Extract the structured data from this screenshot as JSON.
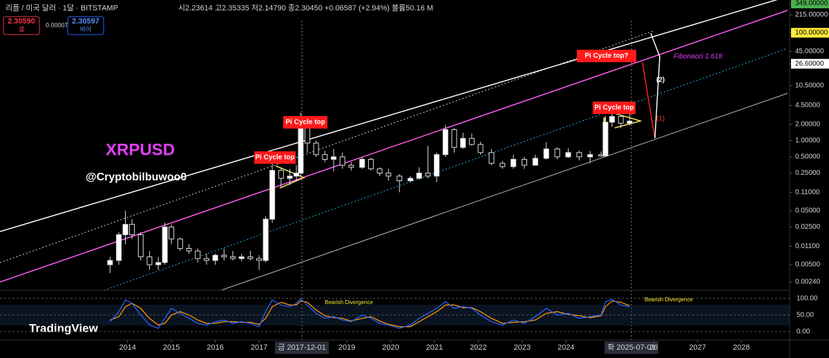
{
  "ui": {
    "symbol": "리플 / 미국 달러 · 1달 · BITSTAMP",
    "ohlc": "시2.23614 고2.35335 저2.14790 종2.30450 +0.06587 (+2.94%) 볼륨50.16 M",
    "sell_price": "2.30590",
    "sell_label": "셀",
    "spread": "0.00007",
    "buy_price": "2.30597",
    "buy_label": "바이",
    "logo": "TradingView",
    "cursor_left": "금 2017-12-01",
    "cursor_right": "화 2025-07-01"
  },
  "chart_data": {
    "type": "candlestick",
    "title": "XRPUSD",
    "subtitle": "@Cryptobilbuwoo0",
    "log_scale": true,
    "xlim": [
      2011.09,
      2029.1
    ],
    "xticks": [
      2014,
      2015,
      2016,
      2017,
      2019,
      2020,
      2021,
      2022,
      2023,
      2024,
      {
        "value": 2026,
        "label": "26"
      },
      2027,
      2028
    ],
    "ylim": [
      0.00168,
      405
    ],
    "yticks": [
      {
        "value": 349,
        "label": "349.00000"
      },
      {
        "value": 215,
        "label": "215.00000"
      },
      {
        "value": 100,
        "label": "100.00000"
      },
      {
        "value": 45,
        "label": "45.00000"
      },
      {
        "value": 26.6,
        "label": "26.60000"
      },
      {
        "value": 10.5,
        "label": "10.50000"
      },
      {
        "value": 4.5,
        "label": "4.50000"
      },
      {
        "value": 2,
        "label": "2.00000"
      },
      {
        "value": 1,
        "label": "1.00000"
      },
      {
        "value": 0.5,
        "label": "0.50000"
      },
      {
        "value": 0.25,
        "label": "0.25000"
      },
      {
        "value": 0.11,
        "label": "0.11000"
      },
      {
        "value": 0.05,
        "label": "0.05000"
      },
      {
        "value": 0.025,
        "label": "0.02500"
      },
      {
        "value": 0.011,
        "label": "0.01100"
      },
      {
        "value": 0.005,
        "label": "0.00500"
      },
      {
        "value": 0.0024,
        "label": "0.00240"
      }
    ],
    "up_color": "#ffffff",
    "down_color": "#000000",
    "x": [
      2013.6,
      2013.8,
      2013.95,
      2014.1,
      2014.3,
      2014.5,
      2014.7,
      2014.85,
      2015.0,
      2015.2,
      2015.4,
      2015.6,
      2015.8,
      2016.0,
      2016.2,
      2016.4,
      2016.6,
      2016.8,
      2017.0,
      2017.15,
      2017.3,
      2017.5,
      2017.7,
      2017.85,
      2017.95,
      2018.1,
      2018.3,
      2018.5,
      2018.7,
      2018.9,
      2019.1,
      2019.35,
      2019.55,
      2019.75,
      2019.95,
      2020.2,
      2020.45,
      2020.65,
      2020.85,
      2021.05,
      2021.25,
      2021.45,
      2021.65,
      2021.85,
      2022.05,
      2022.3,
      2022.55,
      2022.8,
      2023.05,
      2023.3,
      2023.55,
      2023.8,
      2024.05,
      2024.3,
      2024.55,
      2024.8,
      2024.9,
      2025.05,
      2025.25,
      2025.45
    ],
    "open": [
      0.005,
      0.006,
      0.018,
      0.028,
      0.018,
      0.007,
      0.005,
      0.0055,
      0.025,
      0.015,
      0.01,
      0.009,
      0.0065,
      0.006,
      0.0075,
      0.007,
      0.0065,
      0.007,
      0.0065,
      0.006,
      0.035,
      0.28,
      0.2,
      0.22,
      0.25,
      2.3,
      0.9,
      0.55,
      0.45,
      0.5,
      0.35,
      0.32,
      0.45,
      0.3,
      0.25,
      0.22,
      0.18,
      0.2,
      0.25,
      0.22,
      0.55,
      1.6,
      0.75,
      1.1,
      0.85,
      0.6,
      0.38,
      0.33,
      0.45,
      0.35,
      0.47,
      0.7,
      0.5,
      0.6,
      0.5,
      0.55,
      0.52,
      2.2,
      2.8,
      2.1
    ],
    "high": [
      0.007,
      0.02,
      0.05,
      0.035,
      0.02,
      0.009,
      0.007,
      0.03,
      0.028,
      0.016,
      0.012,
      0.01,
      0.008,
      0.008,
      0.01,
      0.009,
      0.008,
      0.009,
      0.0075,
      0.04,
      0.4,
      0.32,
      0.3,
      0.35,
      3.3,
      2.4,
      1.0,
      0.65,
      0.7,
      0.6,
      0.4,
      0.5,
      0.48,
      0.32,
      0.3,
      0.24,
      0.22,
      0.32,
      0.8,
      0.6,
      1.96,
      1.7,
      1.4,
      1.35,
      0.95,
      0.7,
      0.42,
      0.55,
      0.5,
      0.55,
      0.94,
      0.75,
      0.72,
      0.65,
      0.64,
      0.63,
      2.9,
      3.4,
      3.0,
      3.6
    ],
    "low": [
      0.0035,
      0.005,
      0.012,
      0.015,
      0.006,
      0.004,
      0.004,
      0.005,
      0.012,
      0.009,
      0.008,
      0.0055,
      0.005,
      0.005,
      0.006,
      0.006,
      0.0058,
      0.006,
      0.004,
      0.0055,
      0.03,
      0.14,
      0.15,
      0.18,
      0.22,
      0.6,
      0.5,
      0.4,
      0.27,
      0.3,
      0.28,
      0.3,
      0.28,
      0.22,
      0.18,
      0.11,
      0.17,
      0.19,
      0.2,
      0.17,
      0.5,
      0.6,
      0.7,
      0.8,
      0.55,
      0.35,
      0.3,
      0.3,
      0.3,
      0.35,
      0.45,
      0.45,
      0.48,
      0.43,
      0.38,
      0.5,
      0.5,
      1.8,
      1.7,
      1.9
    ],
    "close": [
      0.006,
      0.018,
      0.028,
      0.018,
      0.007,
      0.005,
      0.0055,
      0.025,
      0.015,
      0.01,
      0.009,
      0.0065,
      0.006,
      0.0075,
      0.007,
      0.0065,
      0.007,
      0.0065,
      0.006,
      0.035,
      0.28,
      0.2,
      0.22,
      0.25,
      2.3,
      0.9,
      0.55,
      0.45,
      0.5,
      0.35,
      0.32,
      0.45,
      0.3,
      0.25,
      0.22,
      0.18,
      0.2,
      0.25,
      0.22,
      0.55,
      1.6,
      0.75,
      1.1,
      0.85,
      0.6,
      0.38,
      0.33,
      0.45,
      0.35,
      0.47,
      0.7,
      0.5,
      0.6,
      0.5,
      0.55,
      0.52,
      2.2,
      2.8,
      2.1,
      2.3
    ],
    "annotations": [
      "Pi Cycle top",
      "Pi Cycle top",
      "Pi Cycle top",
      "Pi Cycle top?",
      "Fibonacci 1.618",
      "(2)",
      "(1)",
      "Bearish Divergence",
      "Bearish Divergence"
    ],
    "oscillator": {
      "ylim": [
        -25,
        120
      ],
      "yticks": [
        {
          "value": 100,
          "label": "100.00"
        },
        {
          "value": 50,
          "label": "50.00"
        },
        {
          "value": 0,
          "label": "0.00"
        }
      ],
      "k_color": "#2962ff",
      "d_color": "#ff9800",
      "k": [
        30,
        60,
        95,
        85,
        50,
        20,
        10,
        40,
        70,
        55,
        40,
        25,
        20,
        30,
        35,
        25,
        30,
        25,
        15,
        60,
        95,
        80,
        75,
        85,
        98,
        80,
        55,
        40,
        45,
        35,
        30,
        50,
        40,
        25,
        20,
        10,
        20,
        40,
        55,
        70,
        90,
        70,
        75,
        70,
        50,
        30,
        20,
        35,
        25,
        45,
        70,
        50,
        55,
        40,
        45,
        50,
        90,
        97,
        80,
        75
      ],
      "d": [
        35,
        45,
        75,
        85,
        70,
        40,
        20,
        25,
        50,
        60,
        50,
        35,
        25,
        25,
        30,
        30,
        28,
        28,
        22,
        40,
        75,
        88,
        80,
        80,
        92,
        88,
        65,
        48,
        42,
        40,
        32,
        40,
        45,
        32,
        22,
        15,
        15,
        30,
        45,
        60,
        80,
        80,
        72,
        72,
        60,
        40,
        25,
        28,
        30,
        35,
        55,
        60,
        52,
        48,
        42,
        48,
        75,
        92,
        88,
        78
      ]
    }
  }
}
